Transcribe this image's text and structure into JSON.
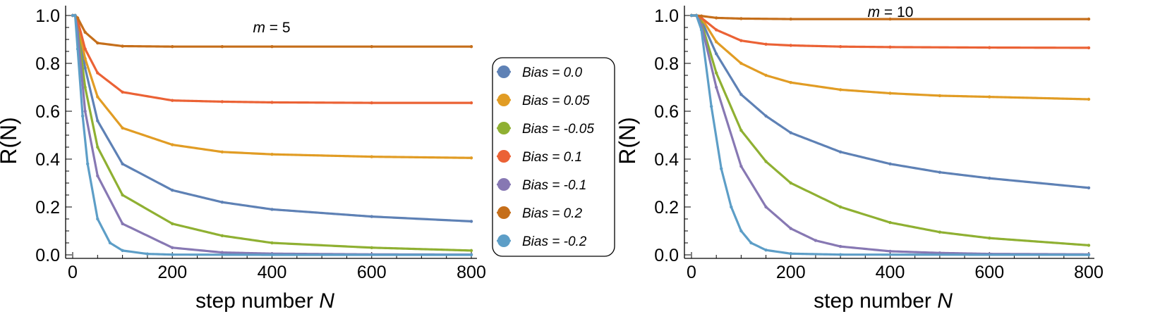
{
  "chart_data": [
    {
      "type": "line",
      "title": "",
      "annotation": {
        "prefix": "m",
        "text": " = 5"
      },
      "xlabel": {
        "text": "step number ",
        "var": "N"
      },
      "ylabel": {
        "text": "R(N)"
      },
      "xlim": [
        -10,
        800
      ],
      "ylim": [
        -0.02,
        1.05
      ],
      "xticks": [
        0,
        200,
        400,
        600,
        800
      ],
      "yticks": [
        0.0,
        0.2,
        0.4,
        0.6,
        0.8,
        1.0
      ],
      "xtick_labels": [
        "0",
        "200",
        "400",
        "600",
        "800"
      ],
      "ytick_labels": [
        "0.0",
        "0.2",
        "0.4",
        "0.6",
        "0.8",
        "1.0"
      ],
      "series": [
        {
          "name": "Bias = 0.0",
          "x": [
            0,
            5,
            10,
            25,
            50,
            100,
            200,
            300,
            400,
            600,
            800
          ],
          "values": [
            1.0,
            1.0,
            0.97,
            0.78,
            0.56,
            0.38,
            0.27,
            0.22,
            0.19,
            0.16,
            0.14
          ]
        },
        {
          "name": "Bias = 0.05",
          "x": [
            0,
            5,
            10,
            25,
            50,
            100,
            200,
            300,
            400,
            600,
            800
          ],
          "values": [
            1.0,
            1.0,
            0.97,
            0.82,
            0.66,
            0.53,
            0.46,
            0.43,
            0.42,
            0.41,
            0.405
          ]
        },
        {
          "name": "Bias = -0.05",
          "x": [
            0,
            5,
            10,
            25,
            50,
            100,
            200,
            300,
            400,
            600,
            800
          ],
          "values": [
            1.0,
            1.0,
            0.95,
            0.7,
            0.45,
            0.25,
            0.13,
            0.08,
            0.05,
            0.03,
            0.018
          ]
        },
        {
          "name": "Bias = 0.1",
          "x": [
            0,
            5,
            10,
            25,
            50,
            100,
            200,
            300,
            400,
            600,
            800
          ],
          "values": [
            1.0,
            1.0,
            0.98,
            0.86,
            0.76,
            0.68,
            0.645,
            0.64,
            0.637,
            0.635,
            0.635
          ]
        },
        {
          "name": "Bias = -0.1",
          "x": [
            0,
            5,
            10,
            25,
            50,
            100,
            200,
            300,
            400,
            600,
            800
          ],
          "values": [
            1.0,
            1.0,
            0.93,
            0.6,
            0.33,
            0.13,
            0.03,
            0.01,
            0.005,
            0.002,
            0.001
          ]
        },
        {
          "name": "Bias = 0.2",
          "x": [
            0,
            5,
            10,
            25,
            50,
            100,
            200,
            300,
            400,
            600,
            800
          ],
          "values": [
            1.0,
            1.0,
            0.99,
            0.93,
            0.885,
            0.872,
            0.87,
            0.87,
            0.87,
            0.87,
            0.87
          ]
        },
        {
          "name": "Bias = -0.2",
          "x": [
            0,
            5,
            10,
            20,
            30,
            50,
            75,
            100,
            150,
            200,
            400,
            800
          ],
          "values": [
            1.0,
            1.0,
            0.86,
            0.58,
            0.38,
            0.15,
            0.05,
            0.018,
            0.004,
            0.001,
            0.0,
            0.0
          ]
        }
      ]
    },
    {
      "type": "line",
      "title": "",
      "annotation": {
        "prefix": "m",
        "text": " = 10"
      },
      "xlabel": {
        "text": "step number ",
        "var": "N"
      },
      "ylabel": {
        "text": "R(N)"
      },
      "xlim": [
        -10,
        800
      ],
      "ylim": [
        -0.02,
        1.05
      ],
      "xticks": [
        0,
        200,
        400,
        600,
        800
      ],
      "yticks": [
        0.0,
        0.2,
        0.4,
        0.6,
        0.8,
        1.0
      ],
      "xtick_labels": [
        "0",
        "200",
        "400",
        "600",
        "800"
      ],
      "ytick_labels": [
        "0.0",
        "0.2",
        "0.4",
        "0.6",
        "0.8",
        "1.0"
      ],
      "series": [
        {
          "name": "Bias = 0.0",
          "x": [
            0,
            10,
            20,
            50,
            100,
            150,
            200,
            300,
            400,
            500,
            600,
            800
          ],
          "values": [
            1.0,
            1.0,
            0.98,
            0.84,
            0.67,
            0.58,
            0.51,
            0.43,
            0.38,
            0.345,
            0.32,
            0.28
          ]
        },
        {
          "name": "Bias = 0.05",
          "x": [
            0,
            10,
            20,
            50,
            100,
            150,
            200,
            300,
            400,
            500,
            600,
            800
          ],
          "values": [
            1.0,
            1.0,
            0.99,
            0.89,
            0.8,
            0.75,
            0.72,
            0.69,
            0.675,
            0.665,
            0.66,
            0.65
          ]
        },
        {
          "name": "Bias = -0.05",
          "x": [
            0,
            10,
            20,
            50,
            100,
            150,
            200,
            300,
            400,
            500,
            600,
            800
          ],
          "values": [
            1.0,
            1.0,
            0.97,
            0.76,
            0.52,
            0.39,
            0.3,
            0.2,
            0.135,
            0.095,
            0.07,
            0.04
          ]
        },
        {
          "name": "Bias = 0.1",
          "x": [
            0,
            10,
            20,
            50,
            100,
            150,
            200,
            300,
            400,
            600,
            800
          ],
          "values": [
            1.0,
            1.0,
            0.99,
            0.94,
            0.895,
            0.88,
            0.875,
            0.87,
            0.868,
            0.866,
            0.865
          ]
        },
        {
          "name": "Bias = -0.1",
          "x": [
            0,
            10,
            20,
            50,
            100,
            150,
            200,
            250,
            300,
            400,
            500,
            600,
            800
          ],
          "values": [
            1.0,
            1.0,
            0.96,
            0.7,
            0.37,
            0.2,
            0.11,
            0.06,
            0.035,
            0.015,
            0.008,
            0.004,
            0.002
          ]
        },
        {
          "name": "Bias = 0.2",
          "x": [
            0,
            10,
            20,
            50,
            100,
            200,
            400,
            800
          ],
          "values": [
            1.0,
            1.0,
            0.998,
            0.99,
            0.987,
            0.985,
            0.985,
            0.985
          ]
        },
        {
          "name": "Bias = -0.2",
          "x": [
            0,
            10,
            20,
            40,
            60,
            80,
            100,
            120,
            150,
            200,
            300,
            800
          ],
          "values": [
            1.0,
            1.0,
            0.94,
            0.62,
            0.36,
            0.2,
            0.1,
            0.05,
            0.02,
            0.005,
            0.001,
            0.0
          ]
        }
      ]
    }
  ],
  "legend": {
    "placement": "between-panels",
    "entries": [
      {
        "label": "Bias = 0.0",
        "color": "#5e81b5"
      },
      {
        "label": "Bias = 0.05",
        "color": "#e19c24"
      },
      {
        "label": "Bias = -0.05",
        "color": "#8fb032"
      },
      {
        "label": "Bias = 0.1",
        "color": "#eb6235"
      },
      {
        "label": "Bias = -0.1",
        "color": "#8778b3"
      },
      {
        "label": "Bias = 0.2",
        "color": "#c56e1a"
      },
      {
        "label": "Bias = -0.2",
        "color": "#5d9ec7"
      }
    ]
  }
}
